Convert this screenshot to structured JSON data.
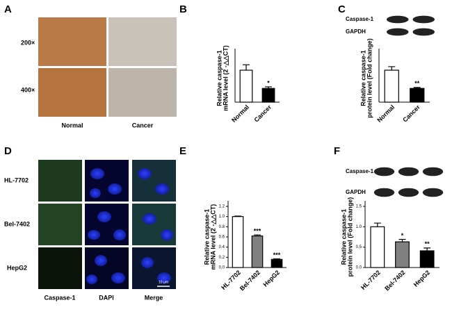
{
  "panels": {
    "A": {
      "letter": "A",
      "rows": [
        "200×",
        "400×"
      ],
      "cols": [
        "Normal",
        "Cancer"
      ]
    },
    "D": {
      "letter": "D",
      "rows": [
        "HL-7702",
        "Bel-7402",
        "HepG2"
      ],
      "cols": [
        "Caspase-1",
        "DAPI",
        "Merge"
      ],
      "scale_bar": "10 μm"
    }
  },
  "chart_data": [
    {
      "type": "bar",
      "letter": "B",
      "ylabel": [
        "Relative caspase-1",
        "mRNA level (2 -△△CT)"
      ],
      "categories": [
        "Normal",
        "Cancer"
      ],
      "values": [
        1.0,
        0.43
      ],
      "errors": [
        0.17,
        0.05
      ],
      "colors": [
        "#ffffff",
        "#000000"
      ],
      "significance": {
        "Cancer": "*"
      },
      "ylim": [
        0,
        1.5
      ]
    },
    {
      "type": "bar",
      "letter": "C",
      "ylabel": [
        "Relative caspase-1",
        "protein level (Fold change)"
      ],
      "blots": [
        "Caspase-1",
        "GAPDH"
      ],
      "categories": [
        "Normal",
        "Cancer"
      ],
      "values": [
        1.0,
        0.43
      ],
      "errors": [
        0.11,
        0.03
      ],
      "colors": [
        "#ffffff",
        "#000000"
      ],
      "significance": {
        "Cancer": "**"
      },
      "ylim": [
        0,
        1.5
      ]
    },
    {
      "type": "bar",
      "letter": "E",
      "ylabel": [
        "Relative caspase-1",
        "mRNA level (2 -△△CT)"
      ],
      "categories": [
        "HL-7702",
        "Bel-7402",
        "HepG2"
      ],
      "values": [
        1.0,
        0.62,
        0.16
      ],
      "errors": [
        0.01,
        0.02,
        0.01
      ],
      "colors": [
        "#ffffff",
        "#808080",
        "#000000"
      ],
      "significance": {
        "Bel-7402": "***",
        "HepG2": "***"
      },
      "ylim": [
        0,
        1.2
      ],
      "yticks": [
        {
          "value": 0,
          "label": "0.0"
        },
        {
          "value": 0.2,
          "label": "0.2"
        },
        {
          "value": 0.4,
          "label": "0.4"
        },
        {
          "value": 0.6,
          "label": "0.6"
        },
        {
          "value": 0.8,
          "label": "0.8"
        },
        {
          "value": 1,
          "label": "1.0"
        },
        {
          "value": 1.2,
          "label": "1.2"
        }
      ]
    },
    {
      "type": "bar",
      "letter": "F",
      "ylabel": [
        "Relative caspase-1",
        "protein level (Fold change)"
      ],
      "blots": [
        "Caspase-1",
        "GAPDH"
      ],
      "categories": [
        "HL-7702",
        "Bel-7402",
        "HepG2"
      ],
      "values": [
        1.0,
        0.63,
        0.41
      ],
      "errors": [
        0.09,
        0.06,
        0.07
      ],
      "colors": [
        "#ffffff",
        "#808080",
        "#000000"
      ],
      "significance": {
        "Bel-7402": "*",
        "HepG2": "**"
      },
      "ylim": [
        0,
        1.5
      ],
      "yticks": [
        {
          "value": 0,
          "label": "0.0"
        },
        {
          "value": 0.5,
          "label": "0.5"
        },
        {
          "value": 1,
          "label": "1.0"
        },
        {
          "value": 1.5,
          "label": "1.5"
        }
      ]
    }
  ]
}
